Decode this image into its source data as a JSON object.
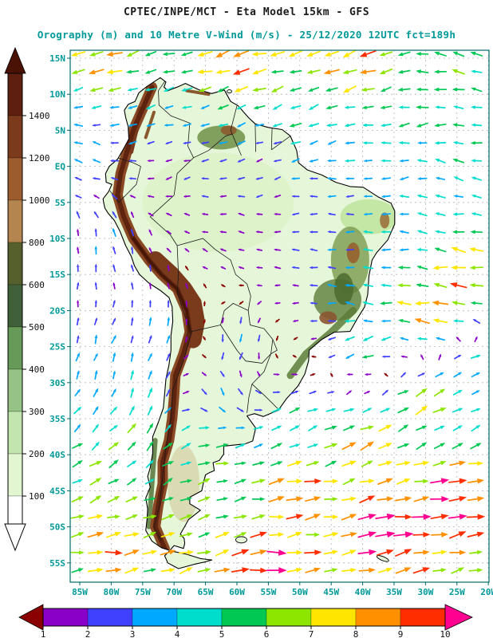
{
  "header": {
    "title1": "CPTEC/INPE/MCT -  Eta Model 15km - GFS",
    "title2": "Orography (m) and 10 Metre V-Wind (m/s) - 25/12/2020 12UTC fct=189h"
  },
  "orography_scale": {
    "unit": "m",
    "labels": [
      "1400",
      "1200",
      "1000",
      "800",
      "600",
      "500",
      "400",
      "300",
      "200",
      "100"
    ],
    "band_colors_top_to_bottom": [
      "#5e1f10",
      "#7c3a1d",
      "#9c5c2e",
      "#b5854f",
      "#56602c",
      "#3f6038",
      "#679a58",
      "#97c285",
      "#c2e4ae",
      "#e2f6d2",
      "#ffffff"
    ],
    "top_arrow_color": "#4a1205",
    "bottom_arrow_color": "#ffffff"
  },
  "wind_scale": {
    "unit": "m/s",
    "labels": [
      "1",
      "2",
      "3",
      "4",
      "5",
      "6",
      "7",
      "8",
      "9",
      "10"
    ],
    "band_colors_left_to_right": [
      "#8a00c8",
      "#4040ff",
      "#00a8ff",
      "#00ddcc",
      "#00c853",
      "#8ce600",
      "#ffe600",
      "#ff9100",
      "#ff2d00"
    ],
    "left_arrow_color": "#8b0000",
    "right_arrow_color": "#ff0090",
    "speed_colors": [
      "#8b0000",
      "#8a00c8",
      "#4040ff",
      "#00a8ff",
      "#00ddcc",
      "#00c853",
      "#8ce600",
      "#ffe600",
      "#ff9100",
      "#ff2d00",
      "#ff0090"
    ]
  },
  "map": {
    "lat_ticks": [
      {
        "label": "15N",
        "lat": 15
      },
      {
        "label": "10N",
        "lat": 10
      },
      {
        "label": "5N",
        "lat": 5
      },
      {
        "label": "EQ",
        "lat": 0
      },
      {
        "label": "5S",
        "lat": -5
      },
      {
        "label": "10S",
        "lat": -10
      },
      {
        "label": "15S",
        "lat": -15
      },
      {
        "label": "20S",
        "lat": -20
      },
      {
        "label": "25S",
        "lat": -25
      },
      {
        "label": "30S",
        "lat": -30
      },
      {
        "label": "35S",
        "lat": -35
      },
      {
        "label": "40S",
        "lat": -40
      },
      {
        "label": "45S",
        "lat": -45
      },
      {
        "label": "50S",
        "lat": -50
      },
      {
        "label": "55S",
        "lat": -55
      }
    ],
    "lon_ticks": [
      {
        "label": "85W",
        "lon": -85
      },
      {
        "label": "80W",
        "lon": -80
      },
      {
        "label": "75W",
        "lon": -75
      },
      {
        "label": "70W",
        "lon": -70
      },
      {
        "label": "65W",
        "lon": -65
      },
      {
        "label": "60W",
        "lon": -60
      },
      {
        "label": "55W",
        "lon": -55
      },
      {
        "label": "50W",
        "lon": -50
      },
      {
        "label": "45W",
        "lon": -45
      },
      {
        "label": "40W",
        "lon": -40
      },
      {
        "label": "35W",
        "lon": -35
      },
      {
        "label": "30W",
        "lon": -30
      },
      {
        "label": "25W",
        "lon": -25
      },
      {
        "label": "20W",
        "lon": -20
      }
    ],
    "frame_color": "#006b6b",
    "grid_color": "#b4b4b4",
    "label_color": "#009999",
    "coast_color": "#000000",
    "land_base_color": "#e6f7d9"
  },
  "wind_field": {
    "control_points": [
      [
        15,
        -80,
        -7.5,
        -2.5
      ],
      [
        15,
        -60,
        -8.5,
        -2.5
      ],
      [
        15,
        -42,
        -8,
        -3.5
      ],
      [
        14,
        -25,
        -5.5,
        1.5
      ],
      [
        8,
        -75,
        -4,
        -1.5
      ],
      [
        8,
        -50,
        -5,
        -2
      ],
      [
        8,
        -32,
        -5,
        -1
      ],
      [
        2,
        -84,
        -3,
        1
      ],
      [
        0,
        -70,
        -1.5,
        -0.5
      ],
      [
        0,
        -55,
        -2,
        -0.8
      ],
      [
        0,
        -35,
        -3.5,
        -0.5
      ],
      [
        0,
        -25,
        -4.5,
        1
      ],
      [
        -8,
        -60,
        -1.5,
        0.3
      ],
      [
        -8,
        -45,
        -2.5,
        0
      ],
      [
        -8,
        -35,
        -4,
        0.5
      ],
      [
        -10,
        -80,
        -0.5,
        3
      ],
      [
        -15,
        -25,
        -8.5,
        1
      ],
      [
        -20,
        -30,
        -8.5,
        0.5
      ],
      [
        -18,
        -40,
        -5,
        1
      ],
      [
        -25,
        -40,
        -5,
        -2
      ],
      [
        -25,
        -60,
        -1,
        -3.5
      ],
      [
        -32,
        -62,
        1.5,
        -3
      ],
      [
        -28,
        -22,
        4,
        2
      ],
      [
        -22,
        -72,
        0.5,
        3
      ],
      [
        -27,
        -80,
        1,
        3.5
      ],
      [
        -30,
        -75,
        1,
        4
      ],
      [
        -38,
        -75,
        3,
        5
      ],
      [
        -42,
        -80,
        5,
        3
      ],
      [
        -40,
        -65,
        6,
        1.5
      ],
      [
        -45,
        -50,
        9,
        1.5
      ],
      [
        -50,
        -35,
        11,
        2
      ],
      [
        -55,
        -55,
        10,
        1
      ],
      [
        -52,
        -70,
        7,
        2
      ],
      [
        -52,
        -80,
        8,
        1
      ],
      [
        -38,
        -40,
        7,
        3
      ],
      [
        -33,
        -30,
        6,
        3
      ],
      [
        -45,
        -25,
        10,
        2
      ],
      [
        -36,
        -50,
        5,
        2
      ]
    ]
  }
}
